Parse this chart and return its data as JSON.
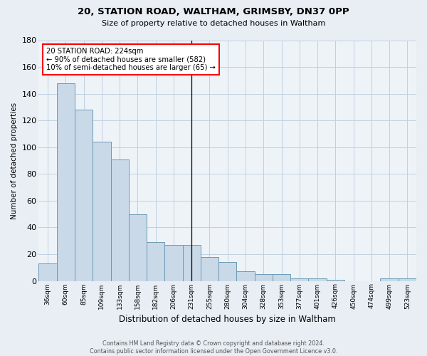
{
  "title": "20, STATION ROAD, WALTHAM, GRIMSBY, DN37 0PP",
  "subtitle": "Size of property relative to detached houses in Waltham",
  "xlabel": "Distribution of detached houses by size in Waltham",
  "ylabel": "Number of detached properties",
  "categories": [
    "36sqm",
    "60sqm",
    "85sqm",
    "109sqm",
    "133sqm",
    "158sqm",
    "182sqm",
    "206sqm",
    "231sqm",
    "255sqm",
    "280sqm",
    "304sqm",
    "328sqm",
    "353sqm",
    "377sqm",
    "401sqm",
    "426sqm",
    "450sqm",
    "474sqm",
    "499sqm",
    "523sqm"
  ],
  "values": [
    13,
    148,
    128,
    104,
    91,
    50,
    29,
    27,
    27,
    18,
    14,
    7,
    5,
    5,
    2,
    2,
    1,
    0,
    0,
    2,
    2
  ],
  "bar_color": "#c9d9e8",
  "bar_edge_color": "#6a9ab5",
  "ylim": [
    0,
    180
  ],
  "yticks": [
    0,
    20,
    40,
    60,
    80,
    100,
    120,
    140,
    160,
    180
  ],
  "vline_x_index": 8,
  "vline_color": "black",
  "annotation_title": "20 STATION ROAD: 224sqm",
  "annotation_line1": "← 90% of detached houses are smaller (582)",
  "annotation_line2": "10% of semi-detached houses are larger (65) →",
  "annotation_box_color": "white",
  "annotation_box_edge_color": "red",
  "footer_line1": "Contains HM Land Registry data © Crown copyright and database right 2024.",
  "footer_line2": "Contains public sector information licensed under the Open Government Licence v3.0.",
  "bg_color": "#e8eef4",
  "plot_bg_color": "#eef3f8",
  "grid_color": "#c0d0e0"
}
